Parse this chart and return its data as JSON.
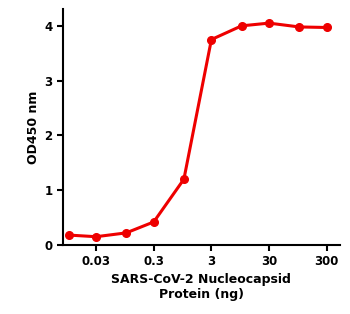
{
  "x_values": [
    0.01,
    0.03,
    0.1,
    0.3,
    1.0,
    3.0,
    10.0,
    30.0,
    100.0,
    300.0
  ],
  "y_values": [
    0.18,
    0.15,
    0.22,
    0.42,
    1.2,
    3.75,
    4.0,
    4.05,
    3.98,
    3.97
  ],
  "line_color": "#EE0000",
  "marker": "o",
  "marker_size": 5.5,
  "linewidth": 2.2,
  "xlabel_line1": "SARS-CoV-2 Nucleocapsid",
  "xlabel_line2": "Protein (ng)",
  "ylabel": "OD450 nm",
  "ylim": [
    0,
    4.3
  ],
  "yticks": [
    0,
    1,
    2,
    3,
    4
  ],
  "xtick_labels": [
    "0.03",
    "0.3",
    "3",
    "30",
    "300"
  ],
  "xtick_positions": [
    0.03,
    0.3,
    3.0,
    30.0,
    300.0
  ],
  "xlim_left": 0.008,
  "xlim_right": 500.0,
  "label_fontsize": 9,
  "tick_fontsize": 8.5,
  "background_color": "#ffffff"
}
